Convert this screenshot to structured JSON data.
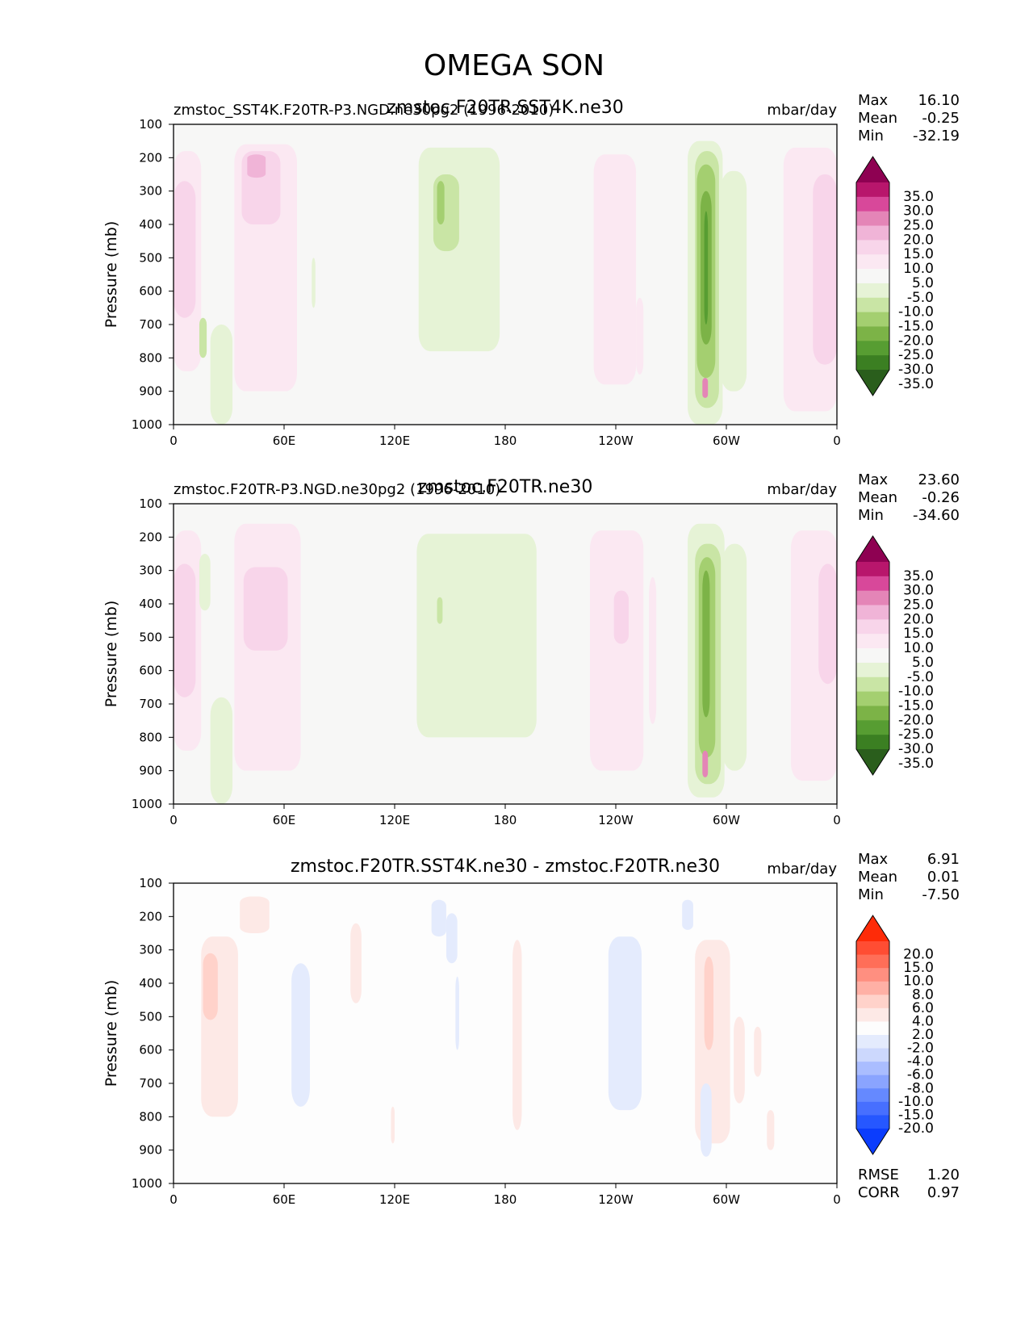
{
  "figure": {
    "title": "OMEGA SON"
  },
  "colors": {
    "background": "#f7f7f6",
    "green": [
      "#2a5e1c",
      "#3b7f22",
      "#579d32",
      "#7cb347",
      "#a4cf70",
      "#c9e5a5",
      "#e6f3d6"
    ],
    "pink": [
      "#8e0152",
      "#b8166c",
      "#d8489a",
      "#e485b7",
      "#f0b4d7",
      "#f8d5ea",
      "#fbe8f2"
    ],
    "diff_neutral": "#fdfdfd",
    "red": [
      "#fe2b08",
      "#ff4d33",
      "#ff6e58",
      "#ff8f80",
      "#ffb0a5",
      "#ffd2ca",
      "#fde9e6"
    ],
    "blue": [
      "#0b3dfd",
      "#2657ff",
      "#476fff",
      "#6589ff",
      "#8aa4ff",
      "#aabdff",
      "#ccd8fd",
      "#e4ebfd"
    ]
  },
  "chart_data": [
    {
      "type": "contour",
      "left_title": "zmstoc_SST4K.F20TR-P3.NGD.ne30pg2 (1996-2010)",
      "center_title": "zmstoc.F20TR.SST4K.ne30",
      "units": "mbar/day",
      "ylabel": "Pressure (mb)",
      "yticks": [
        100,
        200,
        300,
        400,
        500,
        600,
        700,
        800,
        900,
        1000
      ],
      "ylim": [
        1000,
        100
      ],
      "xticks": [
        "0",
        "60E",
        "120E",
        "180",
        "120W",
        "60W",
        "0"
      ],
      "xlim": [
        0,
        360
      ],
      "stats": [
        {
          "label": "Max",
          "value": "16.10"
        },
        {
          "label": "Mean",
          "value": "-0.25"
        },
        {
          "label": "Min",
          "value": "-32.19"
        }
      ],
      "colorbar": {
        "levels": [
          "35.0",
          "30.0",
          "25.0",
          "20.0",
          "15.0",
          "10.0",
          "5.0",
          "-5.0",
          "-10.0",
          "-15.0",
          "-20.0",
          "-25.0",
          "-30.0",
          "-35.0"
        ]
      },
      "regions": [
        {
          "lon": [
            0,
            15
          ],
          "p": [
            180,
            840
          ],
          "level": "pink.6"
        },
        {
          "lon": [
            0,
            12
          ],
          "p": [
            270,
            680
          ],
          "level": "pink.5"
        },
        {
          "lon": [
            33,
            67
          ],
          "p": [
            160,
            900
          ],
          "level": "pink.6"
        },
        {
          "lon": [
            37,
            58
          ],
          "p": [
            180,
            400
          ],
          "level": "pink.5"
        },
        {
          "lon": [
            40,
            50
          ],
          "p": [
            190,
            260
          ],
          "level": "pink.4"
        },
        {
          "lon": [
            133,
            177
          ],
          "p": [
            170,
            780
          ],
          "level": "green.6"
        },
        {
          "lon": [
            141,
            155
          ],
          "p": [
            250,
            480
          ],
          "level": "green.5"
        },
        {
          "lon": [
            143,
            147
          ],
          "p": [
            270,
            400
          ],
          "level": "green.4"
        },
        {
          "lon": [
            228,
            251
          ],
          "p": [
            190,
            880
          ],
          "level": "pink.6"
        },
        {
          "lon": [
            251,
            255
          ],
          "p": [
            620,
            850
          ],
          "level": "pink.6"
        },
        {
          "lon": [
            279,
            298
          ],
          "p": [
            150,
            1000
          ],
          "level": "green.6"
        },
        {
          "lon": [
            283,
            296
          ],
          "p": [
            180,
            950
          ],
          "level": "green.5"
        },
        {
          "lon": [
            284,
            294
          ],
          "p": [
            220,
            860
          ],
          "level": "green.4"
        },
        {
          "lon": [
            286,
            292
          ],
          "p": [
            300,
            760
          ],
          "level": "green.3"
        },
        {
          "lon": [
            288,
            290
          ],
          "p": [
            360,
            700
          ],
          "level": "green.2"
        },
        {
          "lon": [
            287,
            290
          ],
          "p": [
            860,
            920
          ],
          "level": "pink.3"
        },
        {
          "lon": [
            297,
            311
          ],
          "p": [
            240,
            900
          ],
          "level": "green.6"
        },
        {
          "lon": [
            331,
            360
          ],
          "p": [
            170,
            960
          ],
          "level": "pink.6"
        },
        {
          "lon": [
            347,
            360
          ],
          "p": [
            250,
            820
          ],
          "level": "pink.5"
        },
        {
          "lon": [
            14,
            18
          ],
          "p": [
            680,
            800
          ],
          "level": "green.5"
        },
        {
          "lon": [
            20,
            32
          ],
          "p": [
            700,
            1000
          ],
          "level": "green.6"
        },
        {
          "lon": [
            75,
            77
          ],
          "p": [
            500,
            650
          ],
          "level": "green.6"
        }
      ]
    },
    {
      "type": "contour",
      "left_title": "zmstoc.F20TR-P3.NGD.ne30pg2 (1996-2010)",
      "center_title": "zmstoc.F20TR.ne30",
      "units": "mbar/day",
      "ylabel": "Pressure (mb)",
      "yticks": [
        100,
        200,
        300,
        400,
        500,
        600,
        700,
        800,
        900,
        1000
      ],
      "ylim": [
        1000,
        100
      ],
      "xticks": [
        "0",
        "60E",
        "120E",
        "180",
        "120W",
        "60W",
        "0"
      ],
      "xlim": [
        0,
        360
      ],
      "stats": [
        {
          "label": "Max",
          "value": "23.60"
        },
        {
          "label": "Mean",
          "value": "-0.26"
        },
        {
          "label": "Min",
          "value": "-34.60"
        }
      ],
      "colorbar": {
        "levels": [
          "35.0",
          "30.0",
          "25.0",
          "20.0",
          "15.0",
          "10.0",
          "5.0",
          "-5.0",
          "-10.0",
          "-15.0",
          "-20.0",
          "-25.0",
          "-30.0",
          "-35.0"
        ]
      },
      "regions": [
        {
          "lon": [
            0,
            15
          ],
          "p": [
            180,
            840
          ],
          "level": "pink.6"
        },
        {
          "lon": [
            0,
            12
          ],
          "p": [
            280,
            680
          ],
          "level": "pink.5"
        },
        {
          "lon": [
            33,
            69
          ],
          "p": [
            160,
            900
          ],
          "level": "pink.6"
        },
        {
          "lon": [
            38,
            62
          ],
          "p": [
            290,
            540
          ],
          "level": "pink.5"
        },
        {
          "lon": [
            132,
            197
          ],
          "p": [
            190,
            800
          ],
          "level": "green.6"
        },
        {
          "lon": [
            143,
            146
          ],
          "p": [
            380,
            460
          ],
          "level": "green.5"
        },
        {
          "lon": [
            226,
            255
          ],
          "p": [
            180,
            900
          ],
          "level": "pink.6"
        },
        {
          "lon": [
            239,
            247
          ],
          "p": [
            360,
            520
          ],
          "level": "pink.5"
        },
        {
          "lon": [
            258,
            262
          ],
          "p": [
            320,
            760
          ],
          "level": "pink.6"
        },
        {
          "lon": [
            279,
            299
          ],
          "p": [
            160,
            980
          ],
          "level": "green.6"
        },
        {
          "lon": [
            283,
            297
          ],
          "p": [
            220,
            940
          ],
          "level": "green.5"
        },
        {
          "lon": [
            285,
            294
          ],
          "p": [
            260,
            860
          ],
          "level": "green.4"
        },
        {
          "lon": [
            287,
            291
          ],
          "p": [
            300,
            740
          ],
          "level": "green.3"
        },
        {
          "lon": [
            287,
            290
          ],
          "p": [
            840,
            920
          ],
          "level": "pink.3"
        },
        {
          "lon": [
            298,
            311
          ],
          "p": [
            220,
            900
          ],
          "level": "green.6"
        },
        {
          "lon": [
            335,
            360
          ],
          "p": [
            180,
            930
          ],
          "level": "pink.6"
        },
        {
          "lon": [
            350,
            360
          ],
          "p": [
            280,
            640
          ],
          "level": "pink.5"
        },
        {
          "lon": [
            20,
            32
          ],
          "p": [
            680,
            1000
          ],
          "level": "green.6"
        },
        {
          "lon": [
            14,
            20
          ],
          "p": [
            250,
            420
          ],
          "level": "green.6"
        }
      ]
    },
    {
      "type": "contour",
      "left_title": "",
      "center_title": "zmstoc.F20TR.SST4K.ne30 - zmstoc.F20TR.ne30",
      "units": "mbar/day",
      "ylabel": "Pressure (mb)",
      "yticks": [
        100,
        200,
        300,
        400,
        500,
        600,
        700,
        800,
        900,
        1000
      ],
      "ylim": [
        1000,
        100
      ],
      "xticks": [
        "0",
        "60E",
        "120E",
        "180",
        "120W",
        "60W",
        "0"
      ],
      "xlim": [
        0,
        360
      ],
      "stats": [
        {
          "label": "Max",
          "value": "6.91"
        },
        {
          "label": "Mean",
          "value": "0.01"
        },
        {
          "label": "Min",
          "value": "-7.50"
        }
      ],
      "colorbar": {
        "levels": [
          "20.0",
          "15.0",
          "10.0",
          "8.0",
          "6.0",
          "4.0",
          "2.0",
          "-2.0",
          "-4.0",
          "-6.0",
          "-8.0",
          "-10.0",
          "-15.0",
          "-20.0"
        ]
      },
      "extra_stats": [
        {
          "label": "RMSE",
          "value": "1.20"
        },
        {
          "label": "CORR",
          "value": "0.97"
        }
      ],
      "regions": [
        {
          "lon": [
            15,
            35
          ],
          "p": [
            260,
            800
          ],
          "level": "red.6"
        },
        {
          "lon": [
            16,
            24
          ],
          "p": [
            310,
            510
          ],
          "level": "red.5"
        },
        {
          "lon": [
            36,
            52
          ],
          "p": [
            140,
            250
          ],
          "level": "red.6"
        },
        {
          "lon": [
            64,
            74
          ],
          "p": [
            340,
            770
          ],
          "level": "blue.7"
        },
        {
          "lon": [
            96,
            102
          ],
          "p": [
            220,
            460
          ],
          "level": "red.6"
        },
        {
          "lon": [
            118,
            120
          ],
          "p": [
            770,
            880
          ],
          "level": "red.6"
        },
        {
          "lon": [
            140,
            148
          ],
          "p": [
            150,
            260
          ],
          "level": "blue.7"
        },
        {
          "lon": [
            148,
            154
          ],
          "p": [
            190,
            340
          ],
          "level": "blue.7"
        },
        {
          "lon": [
            153,
            155
          ],
          "p": [
            380,
            600
          ],
          "level": "blue.7"
        },
        {
          "lon": [
            184,
            189
          ],
          "p": [
            270,
            840
          ],
          "level": "red.6"
        },
        {
          "lon": [
            236,
            254
          ],
          "p": [
            260,
            780
          ],
          "level": "blue.7"
        },
        {
          "lon": [
            276,
            282
          ],
          "p": [
            150,
            240
          ],
          "level": "blue.7"
        },
        {
          "lon": [
            283,
            302
          ],
          "p": [
            270,
            880
          ],
          "level": "red.6"
        },
        {
          "lon": [
            288,
            293
          ],
          "p": [
            320,
            600
          ],
          "level": "red.5"
        },
        {
          "lon": [
            286,
            292
          ],
          "p": [
            700,
            920
          ],
          "level": "blue.7"
        },
        {
          "lon": [
            304,
            310
          ],
          "p": [
            500,
            760
          ],
          "level": "red.6"
        },
        {
          "lon": [
            315,
            319
          ],
          "p": [
            530,
            680
          ],
          "level": "red.6"
        },
        {
          "lon": [
            322,
            326
          ],
          "p": [
            780,
            900
          ],
          "level": "red.6"
        }
      ]
    }
  ]
}
